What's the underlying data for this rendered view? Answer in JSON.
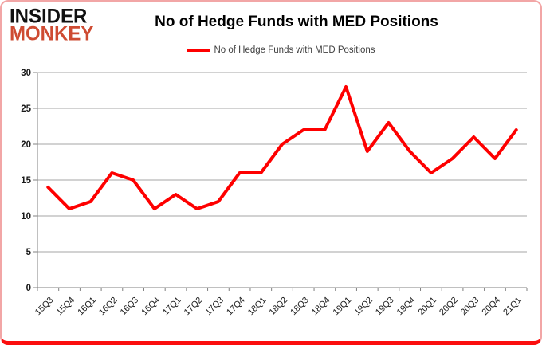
{
  "branding": {
    "line1": "INSIDER",
    "line2": "MONKEY",
    "line1_color": "#111111",
    "line2_color": "#ce4b32"
  },
  "header": {
    "title": "No of Hedge Funds with MED Positions"
  },
  "legend": {
    "label": "No of Hedge Funds with MED Positions",
    "line_color": "#fe0000"
  },
  "colors": {
    "series_line": "#fe0000",
    "gridline": "#a6a6a6",
    "axis": "#808080",
    "tick_label": "#1a1a1a",
    "card_border": "#f2a6a6",
    "card_border_bottom": "#fb0e0e"
  },
  "chart_data": {
    "type": "line",
    "title": "No of Hedge Funds with MED Positions",
    "categories": [
      "15Q3",
      "15Q4",
      "16Q1",
      "16Q2",
      "16Q3",
      "16Q4",
      "17Q1",
      "17Q2",
      "17Q3",
      "17Q4",
      "18Q1",
      "18Q2",
      "18Q3",
      "18Q4",
      "19Q1",
      "19Q2",
      "19Q3",
      "19Q4",
      "20Q1",
      "20Q2",
      "20Q3",
      "20Q4",
      "21Q1"
    ],
    "series": [
      {
        "name": "No of Hedge Funds with MED Positions",
        "color": "#fe0000",
        "values": [
          14,
          11,
          12,
          16,
          15,
          11,
          13,
          11,
          12,
          16,
          16,
          20,
          22,
          22,
          28,
          19,
          23,
          19,
          16,
          18,
          21,
          18,
          22
        ]
      }
    ],
    "xlabel": "",
    "ylabel": "",
    "ylim": [
      0,
      30
    ],
    "ytick_interval": 5,
    "grid": true,
    "legend_position": "top-center",
    "x_label_rotation": -45
  }
}
